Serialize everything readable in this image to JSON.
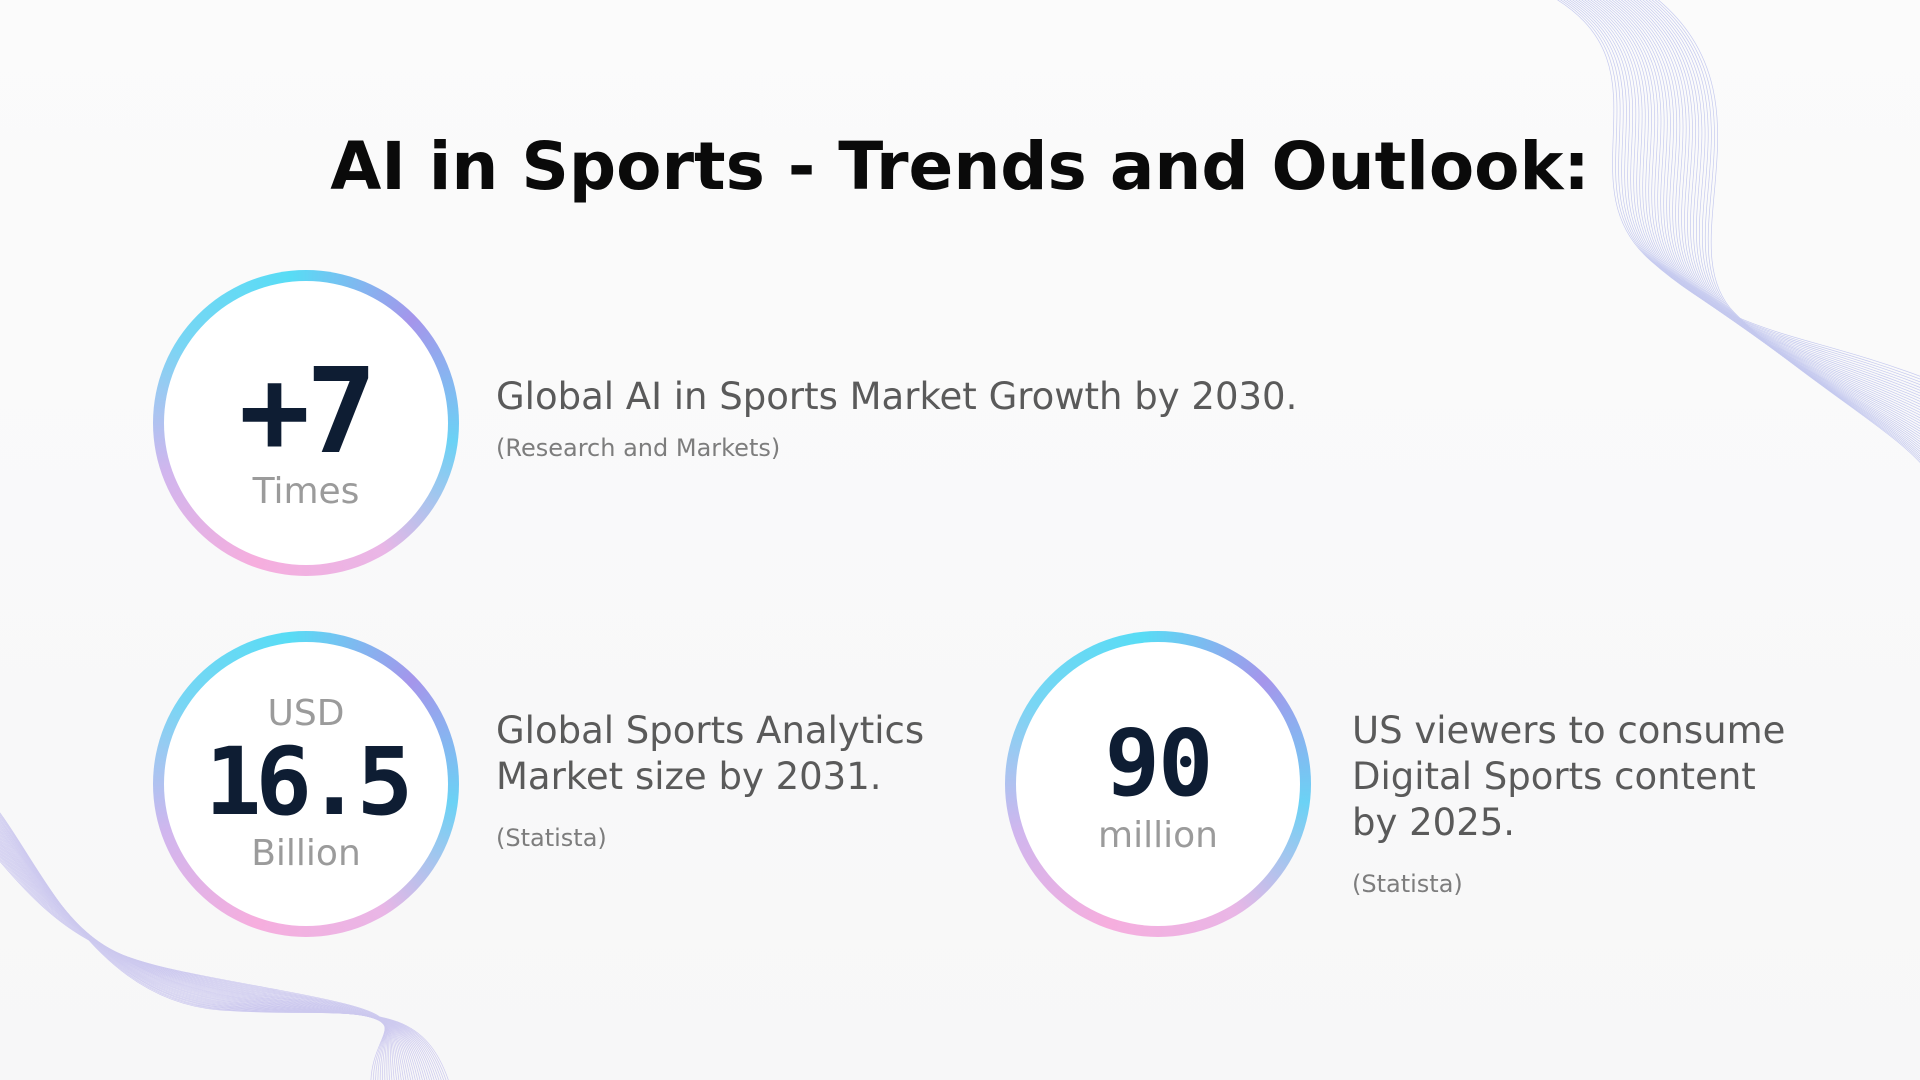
{
  "slide": {
    "title": "AI in Sports - Trends and Outlook:"
  },
  "stats": [
    {
      "prefix": "",
      "value": "+7",
      "unit": "Times",
      "description": "Global AI in Sports Market Growth by 2030.",
      "source": "(Research and Markets)"
    },
    {
      "prefix": "USD",
      "value": "16.5",
      "unit": "Billion",
      "description_lines": [
        "Global Sports Analytics",
        "Market size by 2031."
      ],
      "source": "(Statista)"
    },
    {
      "prefix": "",
      "value": "90",
      "unit": "million",
      "description_lines": [
        "US viewers to consume",
        "Digital Sports content",
        "by 2025."
      ],
      "source": "(Statista)"
    }
  ],
  "colors": {
    "ring_pink": "#f6aede",
    "ring_cyan": "#58dcf5",
    "ring_violet": "#a595eb",
    "number": "#0e1d33",
    "unit": "#9b9b9b"
  }
}
